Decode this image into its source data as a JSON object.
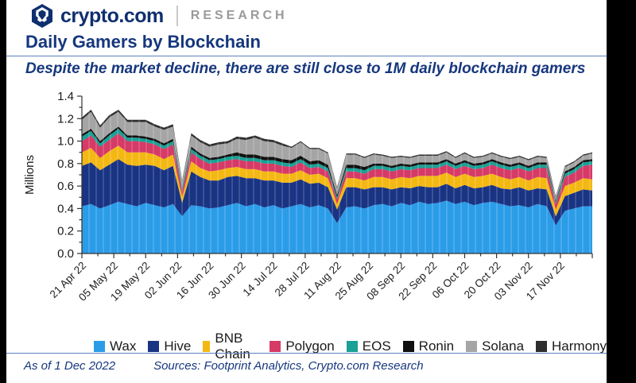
{
  "header": {
    "brand": "crypto.com",
    "suffix": "RESEARCH",
    "logo_color": "#0f2f6f"
  },
  "title": "Daily Gamers by Blockchain",
  "subtitle": "Despite the market decline, there are still close to 1M daily blockchain gamers",
  "footer": {
    "as_of": "As of 1 Dec 2022",
    "sources": "Sources: Footprint Analytics, Crypto.com Research"
  },
  "colors": {
    "navy_text": "#16377e",
    "axis": "#333333",
    "research_gray": "#9a9a9a"
  },
  "chart_data": {
    "type": "area",
    "stacked": true,
    "title": "Daily Gamers by Blockchain",
    "ylabel": "Millions",
    "ylim": [
      0,
      1.4
    ],
    "y_tick_labels": [
      "0.0",
      "0.2",
      "0.4",
      "0.6",
      "0.8",
      "1.0",
      "1.2",
      "1.4"
    ],
    "x_tick_labels": [
      "21 Apr 22",
      "05 May 22",
      "19 May 22",
      "02 Jun 22",
      "16 Jun 22",
      "30 Jun 22",
      "14 Jul 22",
      "28 Jul 22",
      "11 Aug 22",
      "25 Aug 22",
      "08 Sep 22",
      "22 Sep 22",
      "06 Oct 22",
      "20 Oct 22",
      "03 Nov 22",
      "17 Nov 22"
    ],
    "x_tick_interval_days": 14,
    "days_total": 224,
    "grid": false,
    "legend_position": "bottom",
    "series": [
      {
        "name": "Wax",
        "color": "#2b9ce8",
        "values": [
          0.42,
          0.44,
          0.4,
          0.43,
          0.46,
          0.44,
          0.42,
          0.45,
          0.43,
          0.41,
          0.44,
          0.33,
          0.43,
          0.42,
          0.4,
          0.41,
          0.43,
          0.45,
          0.42,
          0.44,
          0.41,
          0.43,
          0.4,
          0.42,
          0.44,
          0.41,
          0.43,
          0.4,
          0.27,
          0.41,
          0.42,
          0.4,
          0.43,
          0.44,
          0.42,
          0.45,
          0.43,
          0.46,
          0.44,
          0.45,
          0.47,
          0.44,
          0.46,
          0.43,
          0.45,
          0.46,
          0.44,
          0.42,
          0.43,
          0.41,
          0.44,
          0.42,
          0.25,
          0.38,
          0.4,
          0.42,
          0.42
        ]
      },
      {
        "name": "Hive",
        "color": "#1a3484",
        "values": [
          0.36,
          0.37,
          0.34,
          0.36,
          0.38,
          0.35,
          0.36,
          0.34,
          0.35,
          0.33,
          0.34,
          0.12,
          0.3,
          0.26,
          0.25,
          0.24,
          0.25,
          0.24,
          0.25,
          0.23,
          0.24,
          0.22,
          0.23,
          0.21,
          0.22,
          0.21,
          0.2,
          0.19,
          0.12,
          0.18,
          0.17,
          0.17,
          0.16,
          0.15,
          0.15,
          0.14,
          0.15,
          0.14,
          0.15,
          0.14,
          0.15,
          0.14,
          0.15,
          0.15,
          0.14,
          0.15,
          0.14,
          0.15,
          0.16,
          0.15,
          0.14,
          0.15,
          0.08,
          0.13,
          0.14,
          0.15,
          0.14
        ]
      },
      {
        "name": "BNB Chain",
        "color": "#f4b813",
        "values": [
          0.12,
          0.13,
          0.11,
          0.12,
          0.12,
          0.11,
          0.12,
          0.11,
          0.1,
          0.1,
          0.1,
          0.05,
          0.09,
          0.08,
          0.08,
          0.09,
          0.08,
          0.08,
          0.08,
          0.08,
          0.08,
          0.08,
          0.08,
          0.08,
          0.08,
          0.08,
          0.08,
          0.08,
          0.05,
          0.08,
          0.08,
          0.08,
          0.09,
          0.09,
          0.09,
          0.09,
          0.09,
          0.09,
          0.1,
          0.1,
          0.1,
          0.1,
          0.1,
          0.1,
          0.1,
          0.1,
          0.1,
          0.09,
          0.09,
          0.09,
          0.1,
          0.1,
          0.06,
          0.09,
          0.09,
          0.1,
          0.1
        ]
      },
      {
        "name": "Polygon",
        "color": "#d63a66",
        "values": [
          0.1,
          0.11,
          0.1,
          0.1,
          0.11,
          0.1,
          0.1,
          0.09,
          0.09,
          0.09,
          0.09,
          0.05,
          0.08,
          0.08,
          0.07,
          0.07,
          0.07,
          0.07,
          0.07,
          0.07,
          0.07,
          0.07,
          0.07,
          0.06,
          0.07,
          0.06,
          0.06,
          0.06,
          0.04,
          0.06,
          0.06,
          0.06,
          0.07,
          0.07,
          0.07,
          0.07,
          0.07,
          0.07,
          0.07,
          0.07,
          0.07,
          0.07,
          0.07,
          0.07,
          0.07,
          0.08,
          0.08,
          0.08,
          0.08,
          0.08,
          0.08,
          0.09,
          0.05,
          0.08,
          0.09,
          0.11,
          0.13
        ]
      },
      {
        "name": "EOS",
        "color": "#1aa095",
        "values": [
          0.04,
          0.04,
          0.03,
          0.04,
          0.04,
          0.03,
          0.03,
          0.03,
          0.03,
          0.03,
          0.03,
          0.02,
          0.03,
          0.03,
          0.03,
          0.03,
          0.03,
          0.03,
          0.03,
          0.03,
          0.03,
          0.03,
          0.03,
          0.03,
          0.03,
          0.03,
          0.03,
          0.03,
          0.02,
          0.03,
          0.03,
          0.03,
          0.03,
          0.03,
          0.03,
          0.03,
          0.03,
          0.03,
          0.03,
          0.03,
          0.03,
          0.03,
          0.03,
          0.03,
          0.03,
          0.03,
          0.03,
          0.03,
          0.03,
          0.03,
          0.03,
          0.03,
          0.02,
          0.03,
          0.03,
          0.03,
          0.03
        ]
      },
      {
        "name": "Ronin",
        "color": "#101010",
        "values": [
          0.02,
          0.02,
          0.02,
          0.02,
          0.02,
          0.02,
          0.02,
          0.02,
          0.02,
          0.02,
          0.02,
          0.01,
          0.02,
          0.02,
          0.02,
          0.02,
          0.02,
          0.03,
          0.03,
          0.03,
          0.03,
          0.03,
          0.03,
          0.03,
          0.03,
          0.03,
          0.03,
          0.03,
          0.02,
          0.03,
          0.03,
          0.03,
          0.02,
          0.02,
          0.02,
          0.02,
          0.02,
          0.02,
          0.02,
          0.02,
          0.02,
          0.02,
          0.02,
          0.02,
          0.02,
          0.02,
          0.02,
          0.02,
          0.02,
          0.02,
          0.02,
          0.02,
          0.01,
          0.02,
          0.02,
          0.02,
          0.02
        ]
      },
      {
        "name": "Solana",
        "color": "#a5a5a5",
        "values": [
          0.13,
          0.15,
          0.12,
          0.14,
          0.13,
          0.12,
          0.12,
          0.13,
          0.11,
          0.12,
          0.11,
          0.06,
          0.1,
          0.1,
          0.1,
          0.11,
          0.1,
          0.12,
          0.13,
          0.15,
          0.14,
          0.13,
          0.12,
          0.11,
          0.12,
          0.11,
          0.1,
          0.1,
          0.06,
          0.09,
          0.09,
          0.08,
          0.08,
          0.07,
          0.07,
          0.06,
          0.06,
          0.06,
          0.06,
          0.06,
          0.06,
          0.05,
          0.06,
          0.05,
          0.05,
          0.05,
          0.05,
          0.05,
          0.05,
          0.05,
          0.05,
          0.04,
          0.03,
          0.04,
          0.04,
          0.04,
          0.05
        ]
      },
      {
        "name": "Harmony",
        "color": "#2e2e2e",
        "values": [
          0.02,
          0.02,
          0.02,
          0.02,
          0.02,
          0.02,
          0.02,
          0.02,
          0.02,
          0.02,
          0.02,
          0.01,
          0.02,
          0.02,
          0.02,
          0.02,
          0.02,
          0.02,
          0.02,
          0.02,
          0.02,
          0.02,
          0.02,
          0.01,
          0.01,
          0.01,
          0.01,
          0.01,
          0.01,
          0.01,
          0.01,
          0.01,
          0.01,
          0.01,
          0.01,
          0.01,
          0.01,
          0.01,
          0.01,
          0.01,
          0.01,
          0.01,
          0.01,
          0.01,
          0.01,
          0.01,
          0.01,
          0.01,
          0.01,
          0.01,
          0.01,
          0.01,
          0.01,
          0.01,
          0.01,
          0.01,
          0.01
        ]
      }
    ]
  }
}
